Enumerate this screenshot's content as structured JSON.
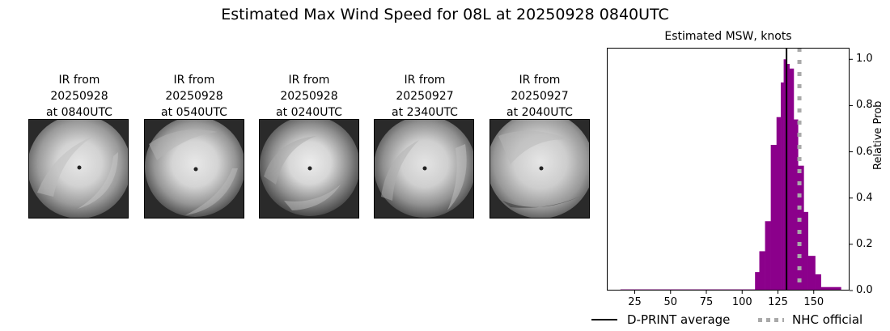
{
  "figure": {
    "title": "Estimated Max Wind Speed for 08L at 20250928 0840UTC"
  },
  "thumbnails": [
    {
      "line1": "IR from",
      "line2": "20250928",
      "line3": "at 0840UTC"
    },
    {
      "line1": "IR from",
      "line2": "20250928",
      "line3": "at 0540UTC"
    },
    {
      "line1": "IR from",
      "line2": "20250928",
      "line3": "at 0240UTC"
    },
    {
      "line1": "IR from",
      "line2": "20250927",
      "line3": "at 2340UTC"
    },
    {
      "line1": "IR from",
      "line2": "20250927",
      "line3": "at 2040UTC"
    }
  ],
  "legend": {
    "dprint_label": "D-PRINT average",
    "nhc_label": "NHC official"
  },
  "colors": {
    "bars": "#8b008b",
    "dprint_line": "#000000",
    "nhc_line": "#a9a9a9"
  },
  "chart_data": {
    "type": "bar",
    "title": "Estimated MSW, knots",
    "xlabel": "",
    "ylabel": "Relative Prob",
    "xlim": [
      5.5,
      175
    ],
    "ylim": [
      0,
      1.05
    ],
    "xticks": [
      25,
      50,
      75,
      100,
      125,
      150
    ],
    "xtick_labels": [
      "25",
      "50",
      "75",
      "100",
      "125",
      "150"
    ],
    "yticks": [
      0.0,
      0.2,
      0.4,
      0.6,
      0.8,
      1.0
    ],
    "ytick_labels": [
      "0.0",
      "0.2",
      "0.4",
      "0.6",
      "0.8",
      "1.0"
    ],
    "y_axis_position": "right",
    "grid": false,
    "legend_position": "bottom",
    "bins": [
      {
        "x0": 15,
        "x1": 109,
        "value": 0.005
      },
      {
        "x0": 109,
        "x1": 112,
        "value": 0.08
      },
      {
        "x0": 112,
        "x1": 116,
        "value": 0.17
      },
      {
        "x0": 116,
        "x1": 120,
        "value": 0.3
      },
      {
        "x0": 120,
        "x1": 124,
        "value": 0.63
      },
      {
        "x0": 124,
        "x1": 127,
        "value": 0.75
      },
      {
        "x0": 127,
        "x1": 129,
        "value": 0.9
      },
      {
        "x0": 129,
        "x1": 131,
        "value": 1.0
      },
      {
        "x0": 131,
        "x1": 133,
        "value": 0.98
      },
      {
        "x0": 133,
        "x1": 136,
        "value": 0.96
      },
      {
        "x0": 136,
        "x1": 139,
        "value": 0.74
      },
      {
        "x0": 139,
        "x1": 143,
        "value": 0.54
      },
      {
        "x0": 143,
        "x1": 146,
        "value": 0.34
      },
      {
        "x0": 146,
        "x1": 151,
        "value": 0.15
      },
      {
        "x0": 151,
        "x1": 155,
        "value": 0.07
      },
      {
        "x0": 155,
        "x1": 169,
        "value": 0.015
      }
    ],
    "vlines": [
      {
        "name": "D-PRINT average",
        "x": 131,
        "style": "solid",
        "color": "#000000"
      },
      {
        "name": "NHC official",
        "x": 140,
        "style": "dotted",
        "color": "#a9a9a9"
      }
    ]
  }
}
